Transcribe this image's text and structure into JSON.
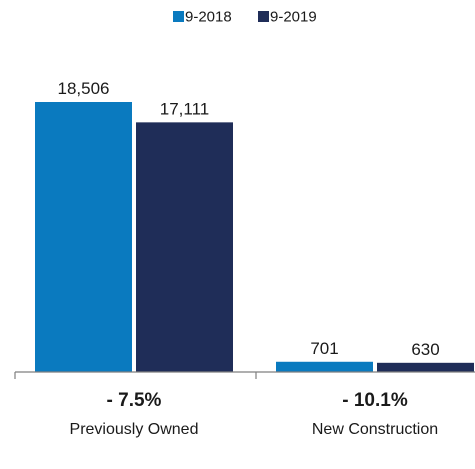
{
  "chart_data": {
    "type": "bar",
    "categories": [
      "Previously Owned",
      "New Construction"
    ],
    "changes": [
      "- 7.5%",
      "- 10.1%"
    ],
    "series": [
      {
        "name": "9-2018",
        "color": "#0a7abf",
        "values": [
          18506,
          701
        ],
        "labels": [
          "18,506",
          "701"
        ]
      },
      {
        "name": "9-2019",
        "color": "#1f2d58",
        "values": [
          17111,
          630
        ],
        "labels": [
          "17,111",
          "630"
        ]
      }
    ],
    "legend_position": "top-center",
    "grid": false
  }
}
